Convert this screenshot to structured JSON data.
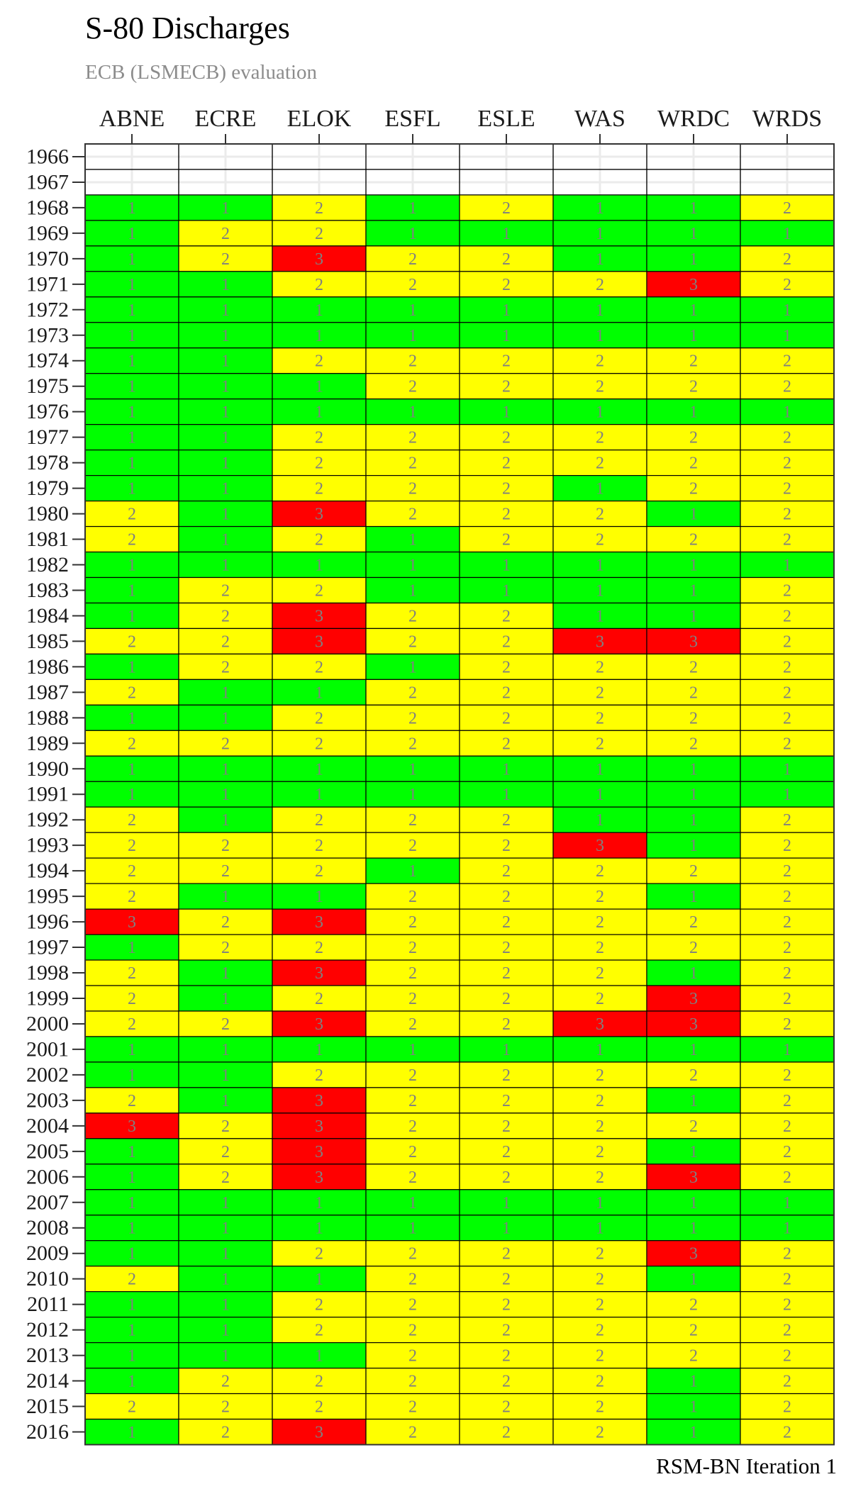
{
  "title": "S-80 Discharges",
  "subtitle": "ECB (LSMECB) evaluation",
  "caption": "RSM-BN Iteration 1",
  "colors": {
    "1": "#00ff00",
    "2": "#ffff00",
    "3": "#ff0000",
    "empty": "#ffffff",
    "grid": "#ebebeb",
    "border": "#000000",
    "label": "#808080"
  },
  "chart_data": {
    "type": "heatmap",
    "title": "S-80 Discharges",
    "subtitle": "ECB (LSMECB) evaluation",
    "caption": "RSM-BN Iteration 1",
    "columns": [
      "ABNE",
      "ECRE",
      "ELOK",
      "ESFL",
      "ESLE",
      "WAS",
      "WRDC",
      "WRDS"
    ],
    "rows": [
      {
        "year": "1966",
        "values": [
          null,
          null,
          null,
          null,
          null,
          null,
          null,
          null
        ]
      },
      {
        "year": "1967",
        "values": [
          null,
          null,
          null,
          null,
          null,
          null,
          null,
          null
        ]
      },
      {
        "year": "1968",
        "values": [
          1,
          1,
          2,
          1,
          2,
          1,
          1,
          2
        ]
      },
      {
        "year": "1969",
        "values": [
          1,
          2,
          2,
          1,
          1,
          1,
          1,
          1
        ]
      },
      {
        "year": "1970",
        "values": [
          1,
          2,
          3,
          2,
          2,
          1,
          1,
          2
        ]
      },
      {
        "year": "1971",
        "values": [
          1,
          1,
          2,
          2,
          2,
          2,
          3,
          2
        ]
      },
      {
        "year": "1972",
        "values": [
          1,
          1,
          1,
          1,
          1,
          1,
          1,
          1
        ]
      },
      {
        "year": "1973",
        "values": [
          1,
          1,
          1,
          1,
          1,
          1,
          1,
          1
        ]
      },
      {
        "year": "1974",
        "values": [
          1,
          1,
          2,
          2,
          2,
          2,
          2,
          2
        ]
      },
      {
        "year": "1975",
        "values": [
          1,
          1,
          1,
          2,
          2,
          2,
          2,
          2
        ]
      },
      {
        "year": "1976",
        "values": [
          1,
          1,
          1,
          1,
          1,
          1,
          1,
          1
        ]
      },
      {
        "year": "1977",
        "values": [
          1,
          1,
          2,
          2,
          2,
          2,
          2,
          2
        ]
      },
      {
        "year": "1978",
        "values": [
          1,
          1,
          2,
          2,
          2,
          2,
          2,
          2
        ]
      },
      {
        "year": "1979",
        "values": [
          1,
          1,
          2,
          2,
          2,
          1,
          2,
          2
        ]
      },
      {
        "year": "1980",
        "values": [
          2,
          1,
          3,
          2,
          2,
          2,
          1,
          2
        ]
      },
      {
        "year": "1981",
        "values": [
          2,
          1,
          2,
          1,
          2,
          2,
          2,
          2
        ]
      },
      {
        "year": "1982",
        "values": [
          1,
          1,
          1,
          1,
          1,
          1,
          1,
          1
        ]
      },
      {
        "year": "1983",
        "values": [
          1,
          2,
          2,
          1,
          1,
          1,
          1,
          2
        ]
      },
      {
        "year": "1984",
        "values": [
          1,
          2,
          3,
          2,
          2,
          1,
          1,
          2
        ]
      },
      {
        "year": "1985",
        "values": [
          2,
          2,
          3,
          2,
          2,
          3,
          3,
          2
        ]
      },
      {
        "year": "1986",
        "values": [
          1,
          2,
          2,
          1,
          2,
          2,
          2,
          2
        ]
      },
      {
        "year": "1987",
        "values": [
          2,
          1,
          1,
          2,
          2,
          2,
          2,
          2
        ]
      },
      {
        "year": "1988",
        "values": [
          1,
          1,
          2,
          2,
          2,
          2,
          2,
          2
        ]
      },
      {
        "year": "1989",
        "values": [
          2,
          2,
          2,
          2,
          2,
          2,
          2,
          2
        ]
      },
      {
        "year": "1990",
        "values": [
          1,
          1,
          1,
          1,
          1,
          1,
          1,
          1
        ]
      },
      {
        "year": "1991",
        "values": [
          1,
          1,
          1,
          1,
          1,
          1,
          1,
          1
        ]
      },
      {
        "year": "1992",
        "values": [
          2,
          1,
          2,
          2,
          2,
          1,
          1,
          2
        ]
      },
      {
        "year": "1993",
        "values": [
          2,
          2,
          2,
          2,
          2,
          3,
          1,
          2
        ]
      },
      {
        "year": "1994",
        "values": [
          2,
          2,
          2,
          1,
          2,
          2,
          2,
          2
        ]
      },
      {
        "year": "1995",
        "values": [
          2,
          1,
          1,
          2,
          2,
          2,
          1,
          2
        ]
      },
      {
        "year": "1996",
        "values": [
          3,
          2,
          3,
          2,
          2,
          2,
          2,
          2
        ]
      },
      {
        "year": "1997",
        "values": [
          1,
          2,
          2,
          2,
          2,
          2,
          2,
          2
        ]
      },
      {
        "year": "1998",
        "values": [
          2,
          1,
          3,
          2,
          2,
          2,
          1,
          2
        ]
      },
      {
        "year": "1999",
        "values": [
          2,
          1,
          2,
          2,
          2,
          2,
          3,
          2
        ]
      },
      {
        "year": "2000",
        "values": [
          2,
          2,
          3,
          2,
          2,
          3,
          3,
          2
        ]
      },
      {
        "year": "2001",
        "values": [
          1,
          1,
          1,
          1,
          1,
          1,
          1,
          1
        ]
      },
      {
        "year": "2002",
        "values": [
          1,
          1,
          2,
          2,
          2,
          2,
          2,
          2
        ]
      },
      {
        "year": "2003",
        "values": [
          2,
          1,
          3,
          2,
          2,
          2,
          1,
          2
        ]
      },
      {
        "year": "2004",
        "values": [
          3,
          2,
          3,
          2,
          2,
          2,
          2,
          2
        ]
      },
      {
        "year": "2005",
        "values": [
          1,
          2,
          3,
          2,
          2,
          2,
          1,
          2
        ]
      },
      {
        "year": "2006",
        "values": [
          1,
          2,
          3,
          2,
          2,
          2,
          3,
          2
        ]
      },
      {
        "year": "2007",
        "values": [
          1,
          1,
          1,
          1,
          1,
          1,
          1,
          1
        ]
      },
      {
        "year": "2008",
        "values": [
          1,
          1,
          1,
          1,
          1,
          1,
          1,
          1
        ]
      },
      {
        "year": "2009",
        "values": [
          1,
          1,
          2,
          2,
          2,
          2,
          3,
          2
        ]
      },
      {
        "year": "2010",
        "values": [
          2,
          1,
          1,
          2,
          2,
          2,
          1,
          2
        ]
      },
      {
        "year": "2011",
        "values": [
          1,
          1,
          2,
          2,
          2,
          2,
          2,
          2
        ]
      },
      {
        "year": "2012",
        "values": [
          1,
          1,
          2,
          2,
          2,
          2,
          2,
          2
        ]
      },
      {
        "year": "2013",
        "values": [
          1,
          1,
          1,
          2,
          2,
          2,
          2,
          2
        ]
      },
      {
        "year": "2014",
        "values": [
          1,
          2,
          2,
          2,
          2,
          2,
          1,
          2
        ]
      },
      {
        "year": "2015",
        "values": [
          2,
          2,
          2,
          2,
          2,
          2,
          1,
          2
        ]
      },
      {
        "year": "2016",
        "values": [
          1,
          2,
          3,
          2,
          2,
          2,
          1,
          2
        ]
      }
    ]
  }
}
